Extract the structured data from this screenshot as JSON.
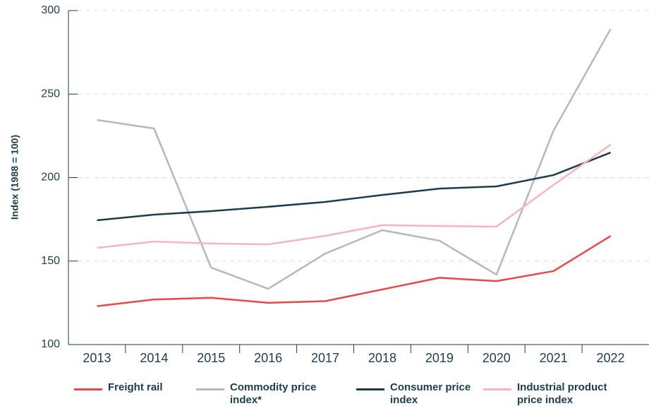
{
  "chart_data": {
    "type": "line",
    "y_label": "Index (1988 = 100)",
    "categories": [
      "2013",
      "2014",
      "2015",
      "2016",
      "2017",
      "2018",
      "2019",
      "2020",
      "2021",
      "2022"
    ],
    "series": [
      {
        "name": "Freight rail",
        "color": "#e5484d",
        "values": [
          123,
          127,
          128,
          125,
          126,
          133,
          140,
          138,
          144,
          165
        ]
      },
      {
        "name": "Commodity price index*",
        "color": "#b8b8b8",
        "values": [
          234.5,
          229.4,
          146.1,
          133.4,
          154.5,
          168.5,
          162.2,
          141.9,
          228.1,
          289
        ]
      },
      {
        "name": "Consumer price index",
        "color": "#1d3d4f",
        "values": [
          174.4,
          177.8,
          179.9,
          182.5,
          185.4,
          189.6,
          193.4,
          194.7,
          201.5,
          215
        ]
      },
      {
        "name": "Industrial product price index",
        "color": "#f5b5c0",
        "values": [
          157.9,
          161.7,
          160.5,
          160,
          165.1,
          171.5,
          171,
          170.6,
          195.6,
          219.7
        ]
      }
    ],
    "ylim": [
      100,
      300
    ],
    "yticks": [
      100,
      150,
      200,
      250,
      300
    ],
    "grid": true
  }
}
